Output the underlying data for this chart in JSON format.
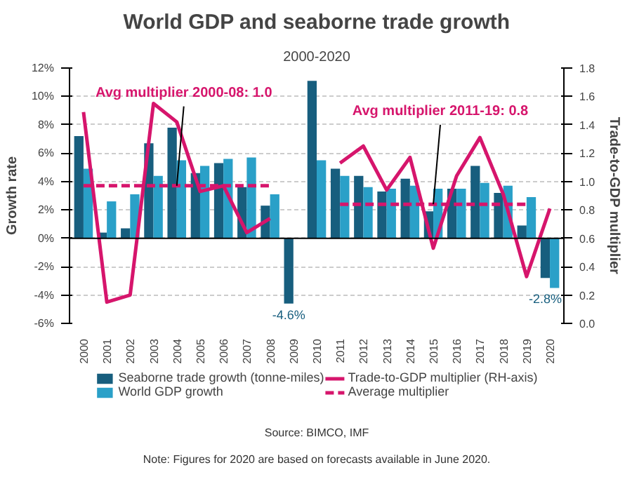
{
  "chart_data": {
    "type": "bar",
    "title": "World GDP and seaborne trade growth",
    "subtitle": "2000-2020",
    "ylabel": "Growth rate",
    "y2label": "Trade-to-GDP multiplier",
    "categories": [
      "2000",
      "2001",
      "2002",
      "2003",
      "2004",
      "2005",
      "2006",
      "2007",
      "2008",
      "2009",
      "2010",
      "2011",
      "2012",
      "2013",
      "2014",
      "2015",
      "2016",
      "2017",
      "2018",
      "2019",
      "2020"
    ],
    "ylim": [
      -6,
      12
    ],
    "yticks": [
      {
        "value": -6,
        "label": "-6%"
      },
      {
        "value": -4,
        "label": "-4%"
      },
      {
        "value": -2,
        "label": "-2%"
      },
      {
        "value": 0,
        "label": "0%"
      },
      {
        "value": 2,
        "label": "2%"
      },
      {
        "value": 4,
        "label": "4%"
      },
      {
        "value": 6,
        "label": "6%"
      },
      {
        "value": 8,
        "label": "8%"
      },
      {
        "value": 10,
        "label": "10%"
      },
      {
        "value": 12,
        "label": "12%"
      }
    ],
    "y2lim": [
      0,
      1.8
    ],
    "y2ticks": [
      {
        "value": 0,
        "label": "0.0"
      },
      0.2,
      0.4,
      0.6,
      0.8,
      {
        "value": 1,
        "label": "1.0"
      },
      1.2,
      1.4,
      1.6,
      1.8
    ],
    "series": [
      {
        "name": "Seaborne trade growth (tonne-miles)",
        "color": "#175e7e",
        "values": [
          7.2,
          0.4,
          0.7,
          6.7,
          7.8,
          4.6,
          5.3,
          3.6,
          2.3,
          -4.6,
          11.1,
          4.9,
          4.4,
          3.3,
          4.2,
          1.9,
          3.5,
          5.1,
          3.2,
          0.9,
          -2.8
        ],
        "value_labels": [
          null,
          null,
          null,
          null,
          null,
          null,
          null,
          null,
          null,
          "-4.6%",
          null,
          null,
          null,
          null,
          null,
          null,
          null,
          null,
          null,
          null,
          "-2.8%"
        ]
      },
      {
        "name": "World GDP growth",
        "color": "#2aa0c8",
        "values": [
          4.9,
          2.6,
          3.1,
          4.4,
          5.5,
          5.1,
          5.6,
          5.7,
          3.1,
          null,
          5.5,
          4.4,
          3.6,
          3.5,
          3.7,
          3.5,
          3.5,
          3.9,
          3.7,
          2.9,
          -3.5
        ]
      },
      {
        "name": "Trade-to-GDP multiplier (RH-axis)",
        "type": "line",
        "axis": "y2",
        "color": "#d6156c",
        "line_style": "solid",
        "values": [
          1.49,
          0.15,
          0.2,
          1.55,
          1.42,
          0.93,
          0.97,
          0.64,
          0.74,
          null,
          null,
          1.13,
          1.25,
          0.94,
          1.17,
          0.53,
          1.04,
          1.31,
          0.91,
          0.33,
          0.81
        ]
      },
      {
        "name": "Average multiplier",
        "type": "line",
        "axis": "y2",
        "color": "#d6156c",
        "line_style": "dashed",
        "values": [
          0.97,
          0.97,
          0.97,
          0.97,
          0.97,
          0.97,
          0.97,
          0.97,
          0.97,
          null,
          null,
          0.84,
          0.84,
          0.84,
          0.84,
          0.84,
          0.84,
          0.84,
          0.84,
          0.84,
          null
        ]
      }
    ],
    "ref_lines": [
      {
        "axis": "y",
        "value": 0,
        "color": "#000000"
      }
    ],
    "grid": "y",
    "legend": "bottom",
    "annotations": [
      {
        "text": "Avg multiplier 2000-08: 1.0",
        "x": "2004",
        "y": 3.7
      },
      {
        "text": "Avg multiplier 2011-19: 0.8",
        "x": "2015",
        "y": 2.4
      },
      "Source: BIMCO, IMF",
      "Note: Figures for 2020 are based on forecasts available in June 2020."
    ]
  }
}
